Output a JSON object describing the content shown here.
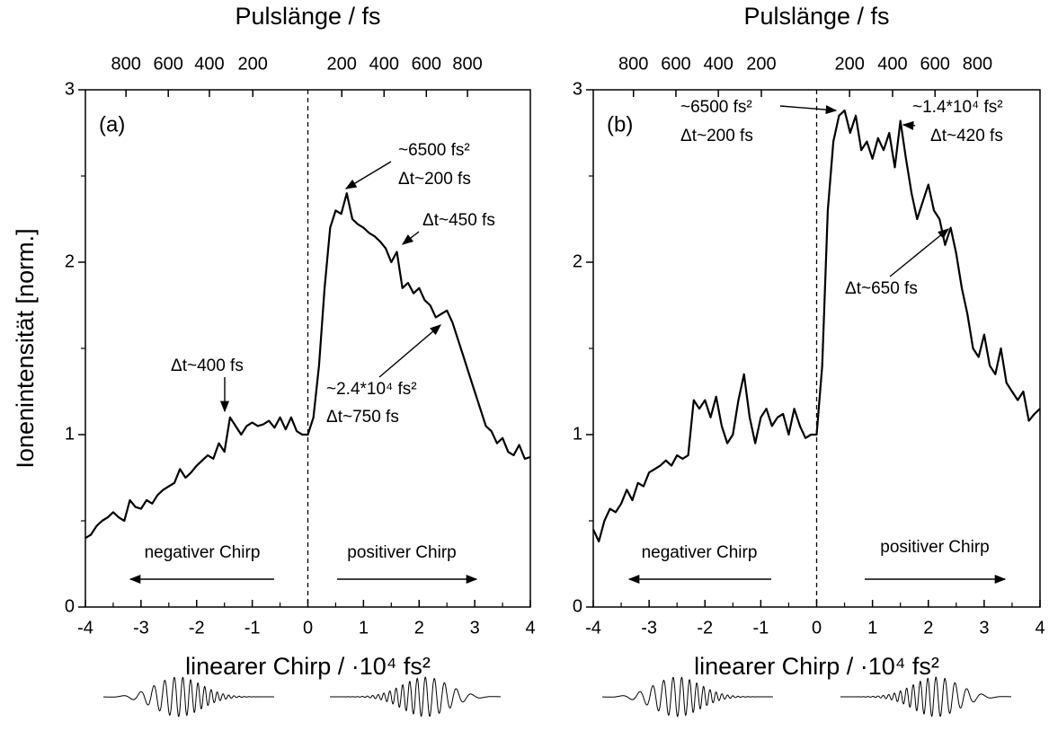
{
  "chart_data": [
    {
      "type": "line",
      "label": "(a)",
      "x2label": "Pulslänge / fs",
      "xlabel": "linearer Chirp / ·10⁴ fs²",
      "ylabel": "Ionenintensität [norm.]",
      "xlim": [
        -4,
        4
      ],
      "ylim": [
        0,
        3
      ],
      "xticks": [
        -4,
        -3,
        -2,
        -1,
        0,
        1,
        2,
        3,
        4
      ],
      "yticks": [
        0,
        1,
        2,
        3
      ],
      "x2ticks": [
        {
          "value": -3.27,
          "label": "800"
        },
        {
          "value": -2.51,
          "label": "600"
        },
        {
          "value": -1.77,
          "label": "400"
        },
        {
          "value": -0.99,
          "label": "200"
        },
        {
          "value": 0.61,
          "label": "200"
        },
        {
          "value": 1.37,
          "label": "400"
        },
        {
          "value": 2.13,
          "label": "600"
        },
        {
          "value": 2.87,
          "label": "800"
        }
      ],
      "vline": 0,
      "x": [
        -4,
        -3.9,
        -3.8,
        -3.7,
        -3.6,
        -3.5,
        -3.4,
        -3.3,
        -3.2,
        -3.1,
        -3,
        -2.9,
        -2.8,
        -2.7,
        -2.6,
        -2.5,
        -2.4,
        -2.3,
        -2.2,
        -2.1,
        -2,
        -1.9,
        -1.8,
        -1.7,
        -1.6,
        -1.5,
        -1.4,
        -1.3,
        -1.2,
        -1.1,
        -1,
        -0.9,
        -0.8,
        -0.7,
        -0.6,
        -0.5,
        -0.4,
        -0.3,
        -0.2,
        -0.1,
        0,
        0.1,
        0.2,
        0.3,
        0.4,
        0.5,
        0.6,
        0.7,
        0.8,
        0.9,
        1,
        1.1,
        1.2,
        1.3,
        1.4,
        1.5,
        1.6,
        1.7,
        1.8,
        1.9,
        2,
        2.1,
        2.2,
        2.3,
        2.4,
        2.5,
        2.6,
        2.7,
        2.8,
        2.9,
        3,
        3.1,
        3.2,
        3.3,
        3.4,
        3.5,
        3.6,
        3.7,
        3.8,
        3.9,
        4
      ],
      "series": [
        {
          "color": "#000000",
          "values": [
            0.4,
            0.42,
            0.47,
            0.5,
            0.52,
            0.55,
            0.52,
            0.5,
            0.62,
            0.58,
            0.57,
            0.62,
            0.6,
            0.65,
            0.68,
            0.7,
            0.72,
            0.8,
            0.75,
            0.78,
            0.82,
            0.85,
            0.88,
            0.86,
            0.95,
            0.9,
            1.1,
            1.05,
            1.0,
            1.05,
            1.07,
            1.05,
            1.06,
            1.08,
            1.04,
            1.1,
            1.03,
            1.1,
            1.02,
            1.0,
            1.0,
            1.1,
            1.4,
            1.85,
            2.2,
            2.3,
            2.28,
            2.4,
            2.25,
            2.22,
            2.2,
            2.17,
            2.15,
            2.12,
            2.08,
            2.0,
            2.06,
            1.85,
            1.88,
            1.82,
            1.85,
            1.78,
            1.75,
            1.68,
            1.7,
            1.72,
            1.65,
            1.55,
            1.45,
            1.35,
            1.25,
            1.15,
            1.05,
            1.02,
            0.95,
            0.98,
            0.9,
            0.88,
            0.94,
            0.86,
            0.87
          ]
        }
      ],
      "annotations": [
        {
          "lines": [
            "~6500 fs²",
            "Δt~200 fs"
          ]
        },
        {
          "lines": [
            "Δt~450 fs"
          ]
        },
        {
          "lines": [
            "~2.4*10⁴ fs²",
            "Δt~750 fs"
          ]
        },
        {
          "lines": [
            "Δt~400 fs"
          ]
        },
        {
          "lines": [
            "negativer Chirp"
          ]
        },
        {
          "lines": [
            "positiver Chirp"
          ]
        }
      ]
    },
    {
      "type": "line",
      "label": "(b)",
      "x2label": "Pulslänge / fs",
      "xlabel": "linearer Chirp / ·10⁴ fs²",
      "xlim": [
        -4,
        4
      ],
      "ylim": [
        0,
        3
      ],
      "xticks": [
        -4,
        -3,
        -2,
        -1,
        0,
        1,
        2,
        3,
        4
      ],
      "yticks": [
        0,
        1,
        2,
        3
      ],
      "x2ticks": [
        {
          "value": -3.28,
          "label": "800"
        },
        {
          "value": -2.52,
          "label": "600"
        },
        {
          "value": -1.76,
          "label": "400"
        },
        {
          "value": -0.99,
          "label": "200"
        },
        {
          "value": 0.59,
          "label": "200"
        },
        {
          "value": 1.36,
          "label": "400"
        },
        {
          "value": 2.12,
          "label": "600"
        },
        {
          "value": 2.88,
          "label": "800"
        }
      ],
      "vline": 0,
      "x": [
        -4,
        -3.9,
        -3.8,
        -3.7,
        -3.6,
        -3.5,
        -3.4,
        -3.3,
        -3.2,
        -3.1,
        -3,
        -2.9,
        -2.8,
        -2.7,
        -2.6,
        -2.5,
        -2.4,
        -2.3,
        -2.2,
        -2.1,
        -2,
        -1.9,
        -1.8,
        -1.7,
        -1.6,
        -1.5,
        -1.4,
        -1.3,
        -1.2,
        -1.1,
        -1,
        -0.9,
        -0.8,
        -0.7,
        -0.6,
        -0.5,
        -0.4,
        -0.3,
        -0.2,
        -0.1,
        0,
        0.1,
        0.2,
        0.3,
        0.4,
        0.5,
        0.6,
        0.7,
        0.8,
        0.9,
        1,
        1.1,
        1.2,
        1.3,
        1.4,
        1.5,
        1.6,
        1.7,
        1.8,
        1.9,
        2,
        2.1,
        2.2,
        2.3,
        2.4,
        2.5,
        2.6,
        2.7,
        2.8,
        2.9,
        3,
        3.1,
        3.2,
        3.3,
        3.4,
        3.5,
        3.6,
        3.7,
        3.8,
        3.9,
        4
      ],
      "series": [
        {
          "color": "#000000",
          "values": [
            0.45,
            0.38,
            0.5,
            0.57,
            0.55,
            0.6,
            0.68,
            0.62,
            0.72,
            0.7,
            0.78,
            0.8,
            0.82,
            0.85,
            0.82,
            0.88,
            0.86,
            0.88,
            1.2,
            1.15,
            1.2,
            1.1,
            1.22,
            1.05,
            0.95,
            1.0,
            1.2,
            1.35,
            1.1,
            0.95,
            1.1,
            1.15,
            1.05,
            1.1,
            1.12,
            1.0,
            1.15,
            1.05,
            0.98,
            1.0,
            1.0,
            1.4,
            2.3,
            2.7,
            2.85,
            2.88,
            2.75,
            2.85,
            2.65,
            2.7,
            2.6,
            2.72,
            2.65,
            2.75,
            2.55,
            2.82,
            2.6,
            2.4,
            2.25,
            2.35,
            2.45,
            2.3,
            2.25,
            2.1,
            2.2,
            2.05,
            1.85,
            1.7,
            1.5,
            1.45,
            1.58,
            1.4,
            1.35,
            1.5,
            1.3,
            1.25,
            1.2,
            1.25,
            1.08,
            1.12,
            1.15
          ]
        }
      ],
      "annotations": [
        {
          "lines": [
            "~6500 fs²",
            "Δt~200 fs"
          ]
        },
        {
          "lines": [
            "~1.4*10⁴ fs²",
            "Δt~420 fs"
          ]
        },
        {
          "lines": [
            "Δt~650 fs"
          ]
        },
        {
          "lines": [
            "negativer Chirp"
          ]
        },
        {
          "lines": [
            "positiver Chirp"
          ]
        }
      ]
    }
  ]
}
